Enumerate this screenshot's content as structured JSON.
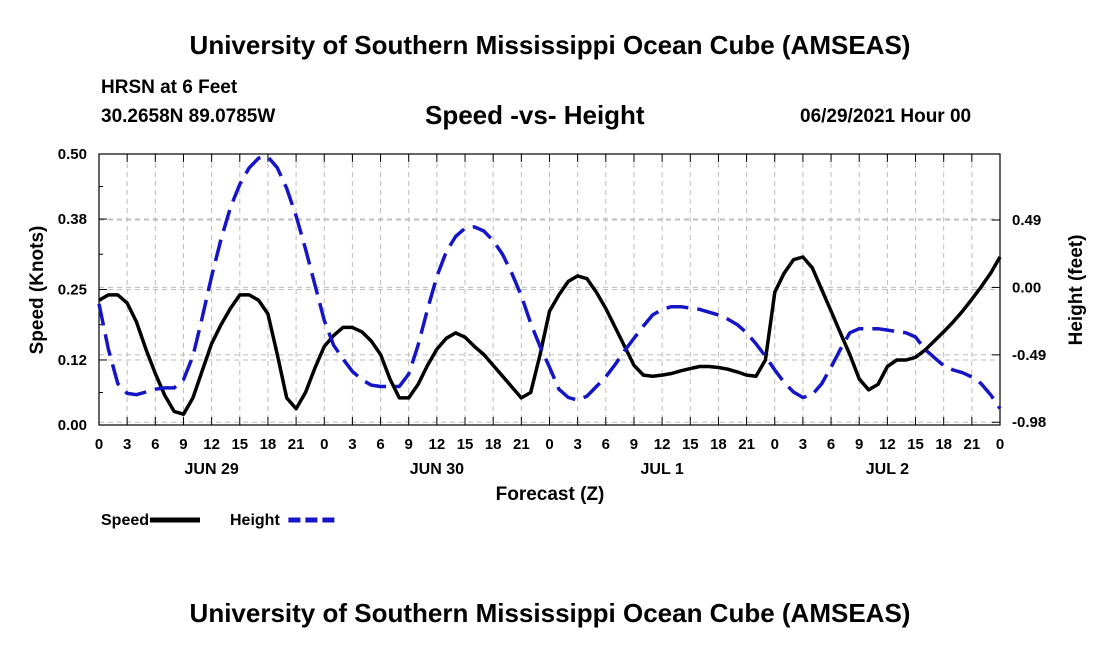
{
  "header": {
    "title_top": "University of Southern Mississippi Ocean Cube (AMSEAS)",
    "station": "HRSN at 6 Feet",
    "coords": "30.2658N  89.0785W",
    "datetime": "06/29/2021 Hour 00",
    "title_bottom": "University of Southern Mississippi Ocean Cube (AMSEAS)"
  },
  "chart_data": {
    "type": "line",
    "title": "Speed -vs- Height",
    "xlabel": "Forecast (Z)",
    "ylabel_left": "Speed (Knots)",
    "ylabel_right": "Height (feet)",
    "x_range_hours": [
      0,
      96
    ],
    "xticks": [
      {
        "h": 0,
        "label": "0"
      },
      {
        "h": 3,
        "label": "3"
      },
      {
        "h": 6,
        "label": "6"
      },
      {
        "h": 9,
        "label": "9"
      },
      {
        "h": 12,
        "label": "12"
      },
      {
        "h": 15,
        "label": "15"
      },
      {
        "h": 18,
        "label": "18"
      },
      {
        "h": 21,
        "label": "21"
      },
      {
        "h": 24,
        "label": "0"
      },
      {
        "h": 27,
        "label": "3"
      },
      {
        "h": 30,
        "label": "6"
      },
      {
        "h": 33,
        "label": "9"
      },
      {
        "h": 36,
        "label": "12"
      },
      {
        "h": 39,
        "label": "15"
      },
      {
        "h": 42,
        "label": "18"
      },
      {
        "h": 45,
        "label": "21"
      },
      {
        "h": 48,
        "label": "0"
      },
      {
        "h": 51,
        "label": "3"
      },
      {
        "h": 54,
        "label": "6"
      },
      {
        "h": 57,
        "label": "9"
      },
      {
        "h": 60,
        "label": "12"
      },
      {
        "h": 63,
        "label": "15"
      },
      {
        "h": 66,
        "label": "18"
      },
      {
        "h": 69,
        "label": "21"
      },
      {
        "h": 72,
        "label": "0"
      },
      {
        "h": 75,
        "label": "3"
      },
      {
        "h": 78,
        "label": "6"
      },
      {
        "h": 81,
        "label": "9"
      },
      {
        "h": 84,
        "label": "12"
      },
      {
        "h": 87,
        "label": "15"
      },
      {
        "h": 90,
        "label": "18"
      },
      {
        "h": 93,
        "label": "21"
      },
      {
        "h": 96,
        "label": "0"
      }
    ],
    "date_labels": [
      {
        "h": 12,
        "label": "JUN 29"
      },
      {
        "h": 36,
        "label": "JUN 30"
      },
      {
        "h": 60,
        "label": "JUL 1"
      },
      {
        "h": 84,
        "label": "JUL 2"
      }
    ],
    "y_left": {
      "min": 0.0,
      "max": 0.5,
      "ticks": [
        0.0,
        0.12,
        0.25,
        0.38,
        0.5
      ],
      "labels": [
        "0.00",
        "0.12",
        "0.25",
        "0.38",
        "0.50"
      ]
    },
    "y_right": {
      "min": -1.0,
      "max": 0.97,
      "ticks": [
        -0.98,
        -0.49,
        0.0,
        0.49
      ],
      "labels": [
        "-0.98",
        "-0.49",
        "0.00",
        "0.49"
      ]
    },
    "grid": true,
    "legend": {
      "position": "bottom-left",
      "entries": [
        "Speed",
        "Height"
      ]
    },
    "series": [
      {
        "name": "Speed",
        "axis": "left",
        "color": "#000000",
        "style": "solid",
        "points": [
          [
            0,
            0.23
          ],
          [
            1,
            0.24
          ],
          [
            2,
            0.24
          ],
          [
            3,
            0.225
          ],
          [
            4,
            0.19
          ],
          [
            5,
            0.14
          ],
          [
            6,
            0.095
          ],
          [
            7,
            0.055
          ],
          [
            8,
            0.025
          ],
          [
            9,
            0.02
          ],
          [
            10,
            0.05
          ],
          [
            11,
            0.1
          ],
          [
            12,
            0.15
          ],
          [
            13,
            0.185
          ],
          [
            14,
            0.215
          ],
          [
            15,
            0.24
          ],
          [
            16,
            0.24
          ],
          [
            17,
            0.23
          ],
          [
            18,
            0.205
          ],
          [
            19,
            0.13
          ],
          [
            20,
            0.05
          ],
          [
            21,
            0.03
          ],
          [
            22,
            0.06
          ],
          [
            23,
            0.105
          ],
          [
            24,
            0.145
          ],
          [
            25,
            0.165
          ],
          [
            26,
            0.18
          ],
          [
            27,
            0.18
          ],
          [
            28,
            0.172
          ],
          [
            29,
            0.155
          ],
          [
            30,
            0.13
          ],
          [
            31,
            0.085
          ],
          [
            32,
            0.05
          ],
          [
            33,
            0.05
          ],
          [
            34,
            0.075
          ],
          [
            35,
            0.11
          ],
          [
            36,
            0.14
          ],
          [
            37,
            0.16
          ],
          [
            38,
            0.17
          ],
          [
            39,
            0.162
          ],
          [
            40,
            0.145
          ],
          [
            41,
            0.13
          ],
          [
            42,
            0.11
          ],
          [
            43,
            0.09
          ],
          [
            44,
            0.07
          ],
          [
            45,
            0.05
          ],
          [
            46,
            0.06
          ],
          [
            47,
            0.13
          ],
          [
            48,
            0.21
          ],
          [
            49,
            0.24
          ],
          [
            50,
            0.265
          ],
          [
            51,
            0.275
          ],
          [
            52,
            0.27
          ],
          [
            53,
            0.245
          ],
          [
            54,
            0.215
          ],
          [
            55,
            0.18
          ],
          [
            56,
            0.145
          ],
          [
            57,
            0.11
          ],
          [
            58,
            0.092
          ],
          [
            59,
            0.09
          ],
          [
            60,
            0.092
          ],
          [
            61,
            0.095
          ],
          [
            62,
            0.1
          ],
          [
            63,
            0.104
          ],
          [
            64,
            0.108
          ],
          [
            65,
            0.108
          ],
          [
            66,
            0.106
          ],
          [
            67,
            0.103
          ],
          [
            68,
            0.098
          ],
          [
            69,
            0.092
          ],
          [
            70,
            0.09
          ],
          [
            71,
            0.12
          ],
          [
            72,
            0.245
          ],
          [
            73,
            0.28
          ],
          [
            74,
            0.305
          ],
          [
            75,
            0.31
          ],
          [
            76,
            0.29
          ],
          [
            77,
            0.25
          ],
          [
            78,
            0.21
          ],
          [
            79,
            0.17
          ],
          [
            80,
            0.13
          ],
          [
            81,
            0.085
          ],
          [
            82,
            0.065
          ],
          [
            83,
            0.075
          ],
          [
            84,
            0.108
          ],
          [
            85,
            0.12
          ],
          [
            86,
            0.12
          ],
          [
            87,
            0.125
          ],
          [
            88,
            0.138
          ],
          [
            89,
            0.155
          ],
          [
            90,
            0.172
          ],
          [
            91,
            0.19
          ],
          [
            92,
            0.21
          ],
          [
            93,
            0.232
          ],
          [
            94,
            0.255
          ],
          [
            95,
            0.28
          ],
          [
            96,
            0.31
          ]
        ]
      },
      {
        "name": "Height",
        "axis": "right",
        "color": "#1515c8",
        "style": "dashed",
        "points": [
          [
            0,
            -0.12
          ],
          [
            1,
            -0.45
          ],
          [
            2,
            -0.7
          ],
          [
            3,
            -0.77
          ],
          [
            4,
            -0.78
          ],
          [
            5,
            -0.76
          ],
          [
            6,
            -0.74
          ],
          [
            7,
            -0.73
          ],
          [
            8,
            -0.73
          ],
          [
            9,
            -0.67
          ],
          [
            10,
            -0.5
          ],
          [
            11,
            -0.22
          ],
          [
            12,
            0.08
          ],
          [
            13,
            0.35
          ],
          [
            14,
            0.58
          ],
          [
            15,
            0.75
          ],
          [
            16,
            0.87
          ],
          [
            17,
            0.94
          ],
          [
            18,
            0.95
          ],
          [
            19,
            0.87
          ],
          [
            20,
            0.72
          ],
          [
            21,
            0.52
          ],
          [
            22,
            0.28
          ],
          [
            23,
            0.02
          ],
          [
            24,
            -0.24
          ],
          [
            25,
            -0.42
          ],
          [
            26,
            -0.52
          ],
          [
            27,
            -0.61
          ],
          [
            28,
            -0.67
          ],
          [
            29,
            -0.71
          ],
          [
            30,
            -0.72
          ],
          [
            31,
            -0.72
          ],
          [
            32,
            -0.72
          ],
          [
            33,
            -0.63
          ],
          [
            34,
            -0.42
          ],
          [
            35,
            -0.16
          ],
          [
            36,
            0.08
          ],
          [
            37,
            0.26
          ],
          [
            38,
            0.37
          ],
          [
            39,
            0.43
          ],
          [
            40,
            0.44
          ],
          [
            41,
            0.41
          ],
          [
            42,
            0.34
          ],
          [
            43,
            0.24
          ],
          [
            44,
            0.1
          ],
          [
            45,
            -0.06
          ],
          [
            46,
            -0.26
          ],
          [
            47,
            -0.43
          ],
          [
            48,
            -0.58
          ],
          [
            49,
            -0.74
          ],
          [
            50,
            -0.8
          ],
          [
            51,
            -0.82
          ],
          [
            52,
            -0.79
          ],
          [
            53,
            -0.72
          ],
          [
            54,
            -0.65
          ],
          [
            55,
            -0.56
          ],
          [
            56,
            -0.46
          ],
          [
            57,
            -0.37
          ],
          [
            58,
            -0.28
          ],
          [
            59,
            -0.2
          ],
          [
            60,
            -0.16
          ],
          [
            61,
            -0.14
          ],
          [
            62,
            -0.14
          ],
          [
            63,
            -0.15
          ],
          [
            64,
            -0.16
          ],
          [
            65,
            -0.18
          ],
          [
            66,
            -0.2
          ],
          [
            67,
            -0.23
          ],
          [
            68,
            -0.27
          ],
          [
            69,
            -0.33
          ],
          [
            70,
            -0.41
          ],
          [
            71,
            -0.5
          ],
          [
            72,
            -0.6
          ],
          [
            73,
            -0.69
          ],
          [
            74,
            -0.76
          ],
          [
            75,
            -0.8
          ],
          [
            76,
            -0.78
          ],
          [
            77,
            -0.7
          ],
          [
            78,
            -0.58
          ],
          [
            79,
            -0.45
          ],
          [
            80,
            -0.33
          ],
          [
            81,
            -0.3
          ],
          [
            82,
            -0.3
          ],
          [
            83,
            -0.3
          ],
          [
            84,
            -0.31
          ],
          [
            85,
            -0.32
          ],
          [
            86,
            -0.33
          ],
          [
            87,
            -0.36
          ],
          [
            88,
            -0.45
          ],
          [
            89,
            -0.51
          ],
          [
            90,
            -0.57
          ],
          [
            91,
            -0.6
          ],
          [
            92,
            -0.62
          ],
          [
            93,
            -0.65
          ],
          [
            94,
            -0.7
          ],
          [
            95,
            -0.78
          ],
          [
            96,
            -0.88
          ]
        ]
      }
    ]
  }
}
